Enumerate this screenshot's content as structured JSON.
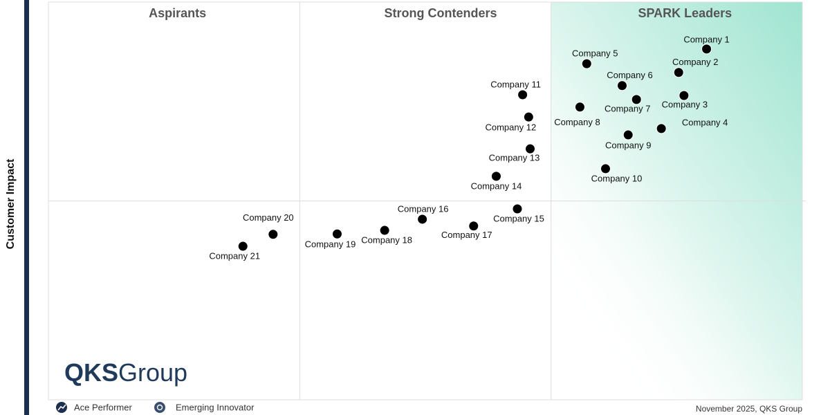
{
  "chart_data": {
    "type": "scatter",
    "quadrant_labels": [
      "Aspirants",
      "Strong Contenders",
      "SPARK Leaders"
    ],
    "ylabel": "Customer Impact",
    "point_labels": [
      "Company 1",
      "Company 2",
      "Company 3",
      "Company 4",
      "Company 5",
      "Company 6",
      "Company 7",
      "Company 8",
      "Company 9",
      "Company 10",
      "Company 11",
      "Company 12",
      "Company 13",
      "Company 14",
      "Company 15",
      "Company 16",
      "Company 17",
      "Company 18",
      "Company 19",
      "Company 20",
      "Company 21"
    ],
    "x": [
      87.3,
      83.6,
      84.3,
      81.3,
      71.4,
      76.1,
      78.0,
      70.5,
      76.9,
      73.9,
      62.9,
      63.7,
      63.9,
      59.4,
      62.2,
      49.6,
      56.4,
      44.6,
      38.3,
      29.8,
      25.8
    ],
    "y": [
      88.2,
      82.3,
      76.5,
      68.2,
      84.5,
      79.0,
      75.5,
      73.6,
      66.6,
      58.1,
      76.7,
      71.1,
      63.1,
      56.2,
      48.0,
      45.4,
      43.7,
      42.6,
      41.7,
      41.6,
      38.6
    ],
    "xlim": [
      0,
      100
    ],
    "ylim": [
      0,
      100
    ],
    "color": "#000000",
    "logo": {
      "bold": "QKS",
      "rest": "Group"
    },
    "legend": [
      "Ace Performer",
      "Emerging Innovator"
    ],
    "footer": "November 2025, QKS Group"
  }
}
